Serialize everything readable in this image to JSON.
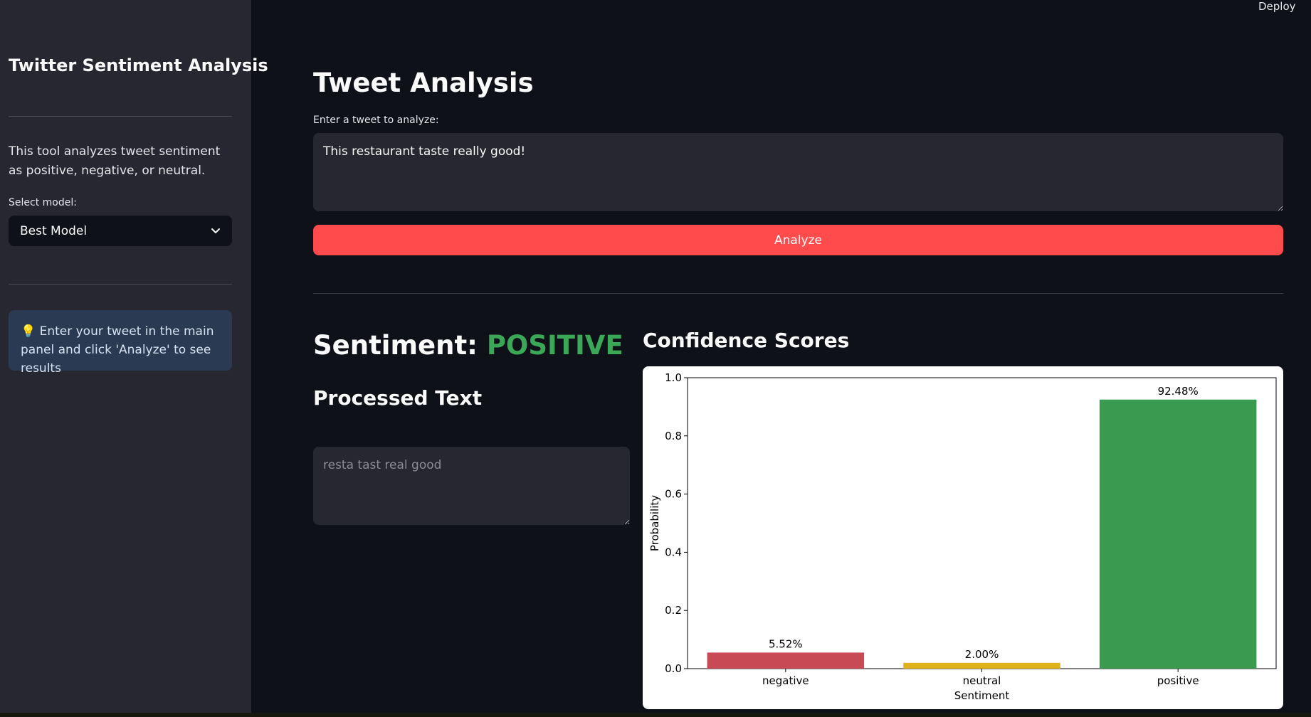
{
  "app": {
    "deploy_label": "Deploy"
  },
  "sidebar": {
    "title": "Twitter Sentiment Analysis",
    "description": "This tool analyzes tweet sentiment as positive, negative, or neutral.",
    "select_label": "Select model:",
    "select_value": "Best Model",
    "info_icon": "lightbulb-icon",
    "info_text": "Enter your tweet in the main panel and click 'Analyze' to see results"
  },
  "main": {
    "title": "Tweet Analysis",
    "input_label": "Enter a tweet to analyze:",
    "tweet_value": "This restaurant taste really good!",
    "analyze_label": "Analyze",
    "sentiment_prefix": "Sentiment: ",
    "sentiment_value": "POSITIVE",
    "processed_title": "Processed Text",
    "processed_value": "resta tast real good",
    "confidence_title": "Confidence Scores"
  },
  "colors": {
    "accent": "#ff4b4b",
    "positive": "#3aa856",
    "negative": "#c84a54",
    "neutral": "#e0b21c"
  },
  "chart_data": {
    "type": "bar",
    "categories": [
      "negative",
      "neutral",
      "positive"
    ],
    "values": [
      0.0552,
      0.02,
      0.9248
    ],
    "data_labels": [
      "5.52%",
      "2.00%",
      "92.48%"
    ],
    "bar_colors": [
      "#c84a54",
      "#e0b21c",
      "#3a9a4f"
    ],
    "xlabel": "Sentiment",
    "ylabel": "Probability",
    "ylim": [
      0,
      1.0
    ],
    "yticks": [
      "0.0",
      "0.2",
      "0.4",
      "0.6",
      "0.8",
      "1.0"
    ],
    "grid": false
  }
}
